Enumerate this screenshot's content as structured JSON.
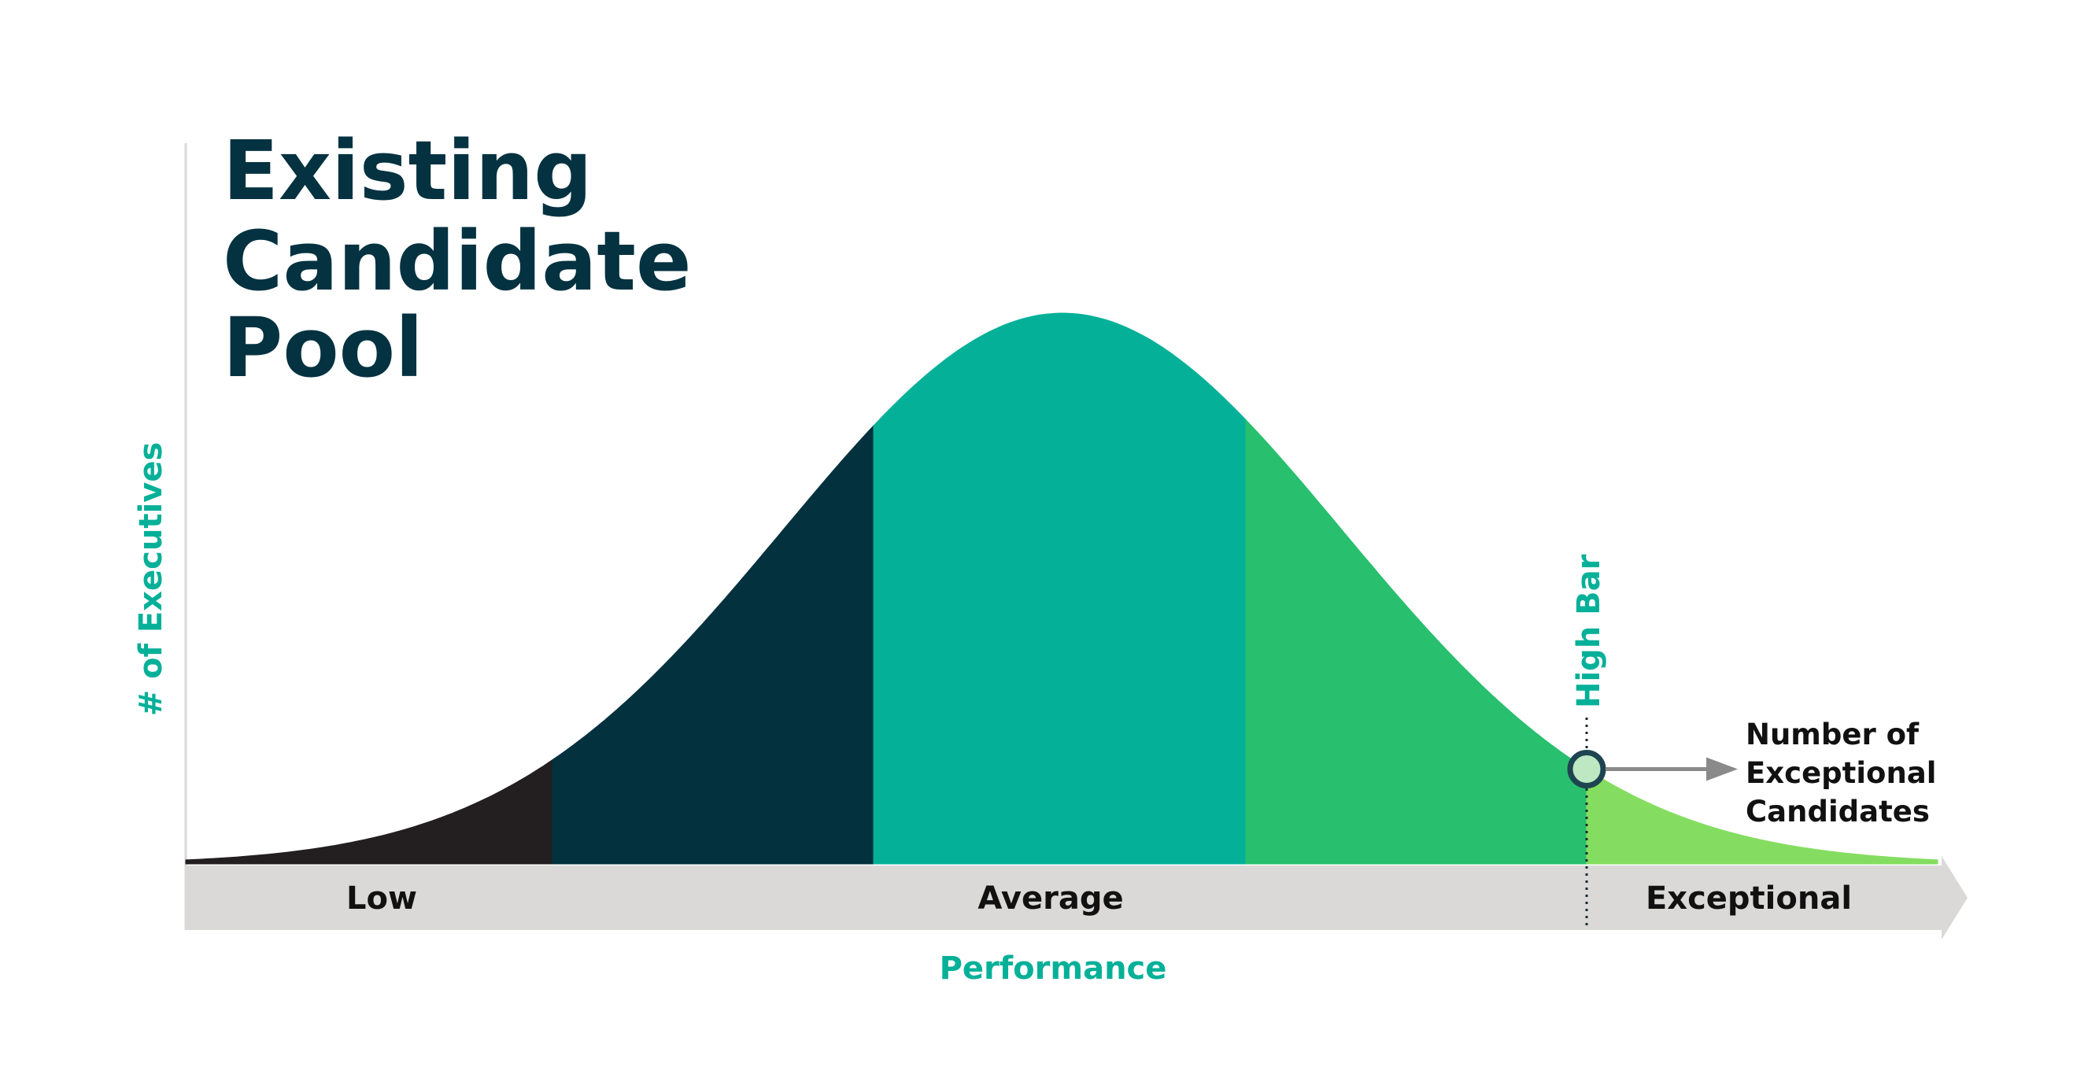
{
  "title_lines": [
    "Existing",
    "Candidate",
    "Pool"
  ],
  "y_axis_label": "# of Executives",
  "x_axis_label": "Performance",
  "categories": [
    "Low",
    "Average",
    "Exceptional"
  ],
  "threshold_label": "High Bar",
  "callout_lines": [
    "Number of",
    "Exceptional",
    "Candidates"
  ],
  "colors": {
    "title": "#043240",
    "accent": "#05B098",
    "segment_low": "#231F20",
    "segment_below_avg": "#03313E",
    "segment_avg": "#05B098",
    "segment_above_avg": "#28BF6E",
    "segment_exceptional": "#84DD60",
    "axis_band": "#DAD9D8",
    "callout_arrow": "#8A8A8A",
    "callout_text": "#111111"
  }
}
